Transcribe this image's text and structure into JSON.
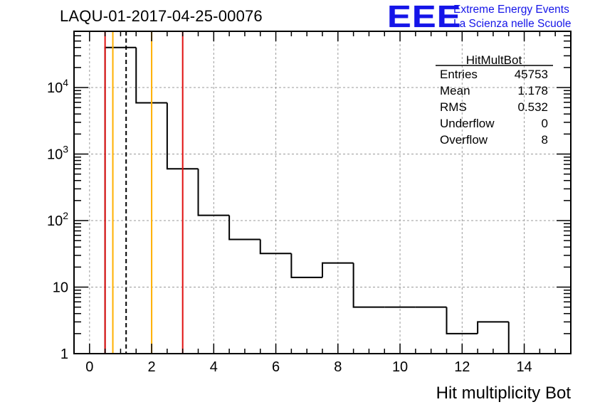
{
  "title": "LAQU-01-2017-04-25-00076",
  "logo": {
    "mark": "EEE",
    "line1": "Extreme Energy Events",
    "line2": "La Scienza nelle Scuole",
    "color": "#1515e8"
  },
  "stats": {
    "name": "HitMultBot",
    "rows": [
      {
        "label": "Entries",
        "value": "45753"
      },
      {
        "label": "Mean",
        "value": "1.178"
      },
      {
        "label": "RMS",
        "value": "0.532"
      },
      {
        "label": "Underflow",
        "value": "0"
      },
      {
        "label": "Overflow",
        "value": "8"
      }
    ]
  },
  "chart_data": {
    "type": "histogram",
    "title": "LAQU-01-2017-04-25-00076",
    "xlabel": "Hit multiplicity Bot",
    "ylabel": "",
    "xlim": [
      -0.5,
      15.5
    ],
    "ylim": [
      1,
      70000
    ],
    "yscale": "log",
    "grid": true,
    "bin_edges": [
      0.5,
      1.5,
      2.5,
      3.5,
      4.5,
      5.5,
      6.5,
      7.5,
      8.5,
      9.5,
      10.5,
      11.5,
      12.5,
      13.5
    ],
    "counts": [
      40000,
      5900,
      600,
      120,
      52,
      32,
      14,
      23,
      5,
      5,
      5,
      2,
      3
    ],
    "x_ticks": [
      0,
      2,
      4,
      6,
      8,
      10,
      12,
      14
    ],
    "x_tick_labels": [
      "0",
      "2",
      "4",
      "6",
      "8",
      "10",
      "12",
      "14"
    ],
    "y_ticks": [
      1,
      10,
      100,
      1000,
      10000
    ],
    "y_tick_labels": [
      {
        "base": "1",
        "exp": ""
      },
      {
        "base": "10",
        "exp": ""
      },
      {
        "base": "10",
        "exp": "2"
      },
      {
        "base": "10",
        "exp": "3"
      },
      {
        "base": "10",
        "exp": "4"
      }
    ],
    "vertical_lines": [
      {
        "x": 0.5,
        "color": "#e01010",
        "style": "solid"
      },
      {
        "x": 0.75,
        "color": "#ffb000",
        "style": "solid"
      },
      {
        "x": 1.178,
        "color": "#000000",
        "style": "dashed"
      },
      {
        "x": 2.0,
        "color": "#ffb000",
        "style": "solid"
      },
      {
        "x": 3.0,
        "color": "#e01010",
        "style": "solid"
      }
    ]
  }
}
